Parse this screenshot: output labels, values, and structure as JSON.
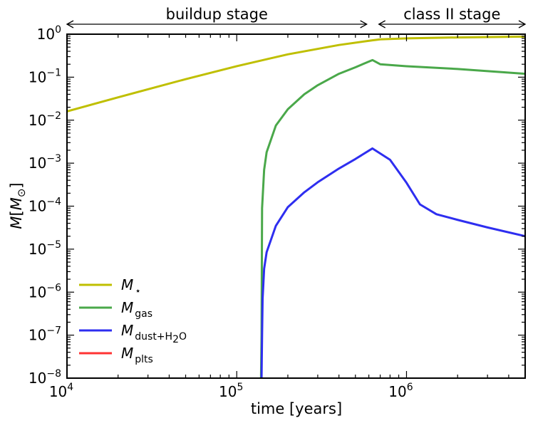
{
  "chart_data": {
    "type": "line",
    "xlabel": "time [years]",
    "ylabel_main": "M",
    "ylabel_unit": "M",
    "ylabel_unit_sub": "⊙",
    "x_scale": "log",
    "y_scale": "log",
    "xlim": [
      10000,
      5000000
    ],
    "ylim": [
      1e-08,
      1
    ],
    "x_ticks": [
      {
        "base": "10",
        "exp": "4",
        "value": 10000
      },
      {
        "base": "10",
        "exp": "5",
        "value": 100000
      },
      {
        "base": "10",
        "exp": "6",
        "value": 1000000
      }
    ],
    "y_ticks": [
      {
        "base": "10",
        "exp": "0",
        "value": 1
      },
      {
        "base": "10",
        "exp": "−1",
        "value": 0.1
      },
      {
        "base": "10",
        "exp": "−2",
        "value": 0.01
      },
      {
        "base": "10",
        "exp": "−3",
        "value": 0.001
      },
      {
        "base": "10",
        "exp": "−4",
        "value": 0.0001
      },
      {
        "base": "10",
        "exp": "−5",
        "value": 1e-05
      },
      {
        "base": "10",
        "exp": "−6",
        "value": 1e-06
      },
      {
        "base": "10",
        "exp": "−7",
        "value": 1e-07
      },
      {
        "base": "10",
        "exp": "−8",
        "value": 1e-08
      }
    ],
    "grid": false,
    "legend_position": "lower-left",
    "annotations": [
      {
        "text": "buildup stage",
        "x_from": 10000,
        "x_to": 630000
      },
      {
        "text": "class II stage",
        "x_from": 630000,
        "x_to": 5000000
      }
    ],
    "series": [
      {
        "name": "M",
        "name_sub": "⋆",
        "color": "#bfbf00",
        "x": [
          10000,
          20000,
          50000,
          100000,
          200000,
          400000,
          630000,
          700000,
          1000000,
          2000000,
          5000000
        ],
        "y": [
          0.016,
          0.034,
          0.09,
          0.18,
          0.34,
          0.56,
          0.72,
          0.76,
          0.8,
          0.84,
          0.88
        ]
      },
      {
        "name": "M",
        "name_sub": "gas",
        "color": "#4aa84a",
        "x": [
          139000,
          140000,
          141000,
          145000,
          150000,
          170000,
          200000,
          250000,
          300000,
          400000,
          500000,
          630000,
          700000,
          1000000,
          2000000,
          5000000
        ],
        "y": [
          1e-08,
          1e-07,
          9e-05,
          0.0007,
          0.0018,
          0.0075,
          0.018,
          0.04,
          0.065,
          0.12,
          0.17,
          0.25,
          0.2,
          0.18,
          0.155,
          0.12
        ]
      },
      {
        "name": "M",
        "name_sub": "dust+H",
        "name_sub2": "2",
        "name_sub3": "O",
        "color": "#2e2ef0",
        "x": [
          140000,
          141000,
          142000,
          145000,
          150000,
          170000,
          200000,
          250000,
          300000,
          400000,
          500000,
          630000,
          800000,
          1000000,
          1200000,
          1500000,
          2000000,
          3000000,
          5000000
        ],
        "y": [
          1e-08,
          1e-07,
          7e-07,
          3.5e-06,
          8.5e-06,
          3.5e-05,
          9.5e-05,
          0.00021,
          0.00036,
          0.00075,
          0.00125,
          0.0022,
          0.0012,
          0.00035,
          0.00011,
          6.5e-05,
          4.8e-05,
          3.2e-05,
          2e-05
        ]
      },
      {
        "name": "M",
        "name_sub": "plts",
        "color": "#ff3333",
        "x": [],
        "y": []
      }
    ]
  }
}
